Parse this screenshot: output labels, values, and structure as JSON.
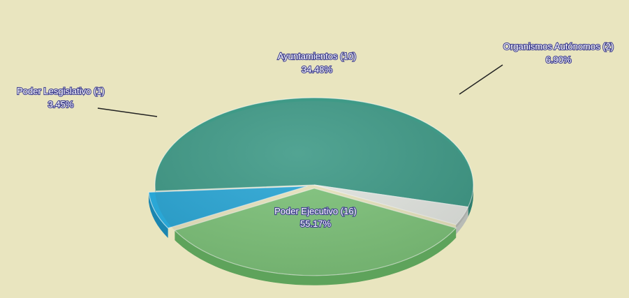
{
  "chart_data": {
    "type": "pie",
    "title": "",
    "slices": [
      {
        "label": "Poder Ejecutivo (16)",
        "percent": "55.17%",
        "value": 16,
        "color": "#3f9a87",
        "side_color": "#2f7f6f"
      },
      {
        "label": "Poder Lesgislativo (1)",
        "percent": "3.45%",
        "value": 1,
        "color": "#e3e6e1",
        "side_color": "#b8bbb6"
      },
      {
        "label": "Ayuntamientos (10)",
        "percent": "34.48%",
        "value": 10,
        "color": "#7ec37a",
        "side_color": "#5ea35b"
      },
      {
        "label": "Organismos Autónomos (2)",
        "percent": "6.90%",
        "value": 2,
        "color": "#2aa7d6",
        "side_color": "#1b86b0"
      }
    ],
    "legend": "none",
    "labels": "callout"
  },
  "colors": {
    "background": "#e9e5bf",
    "label_text": "#ffffff",
    "label_outline": "#3f3f8f",
    "leader_line": "#222222"
  }
}
